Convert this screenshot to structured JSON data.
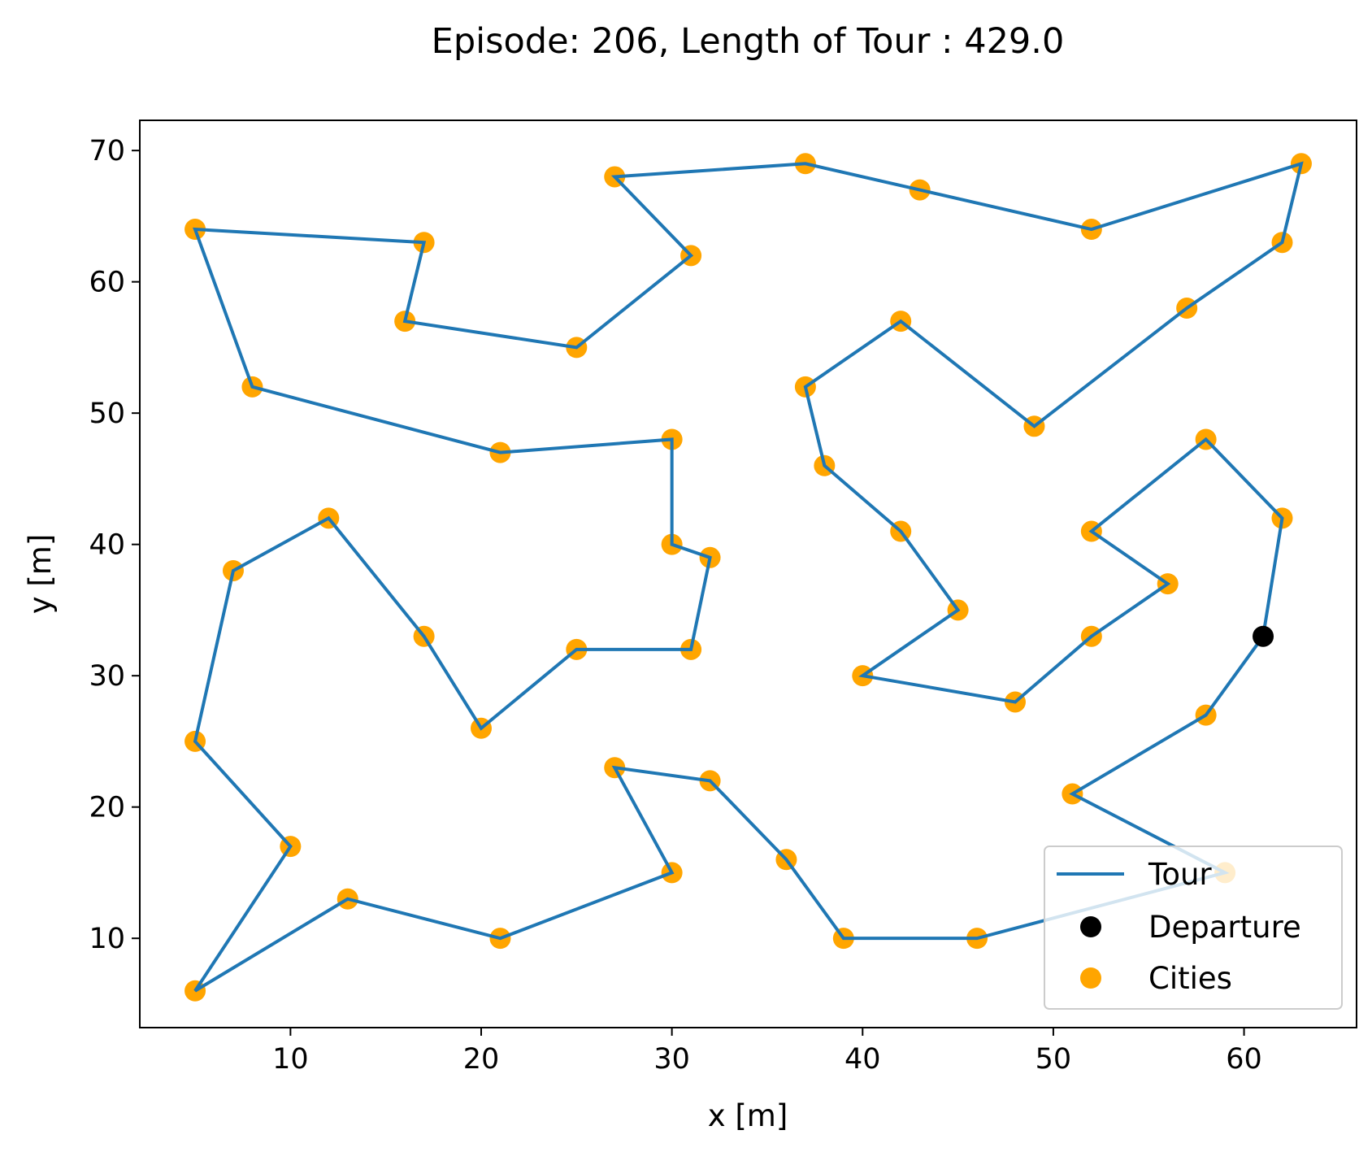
{
  "chart_data": {
    "type": "scatter",
    "title": "Episode: 206, Length of Tour : 429.0",
    "xlabel": "x [m]",
    "ylabel": "y [m]",
    "xlim": [
      2.1,
      65.9
    ],
    "ylim": [
      3.2,
      72.3
    ],
    "xticks": [
      10,
      20,
      30,
      40,
      50,
      60
    ],
    "yticks": [
      10,
      20,
      30,
      40,
      50,
      60,
      70
    ],
    "grid": false,
    "legend_position": "lower-right",
    "series": [
      {
        "name": "Tour",
        "kind": "line",
        "color": "#1f77b4",
        "points": [
          [
            61,
            33
          ],
          [
            62,
            42
          ],
          [
            58,
            48
          ],
          [
            52,
            41
          ],
          [
            56,
            37
          ],
          [
            52,
            33
          ],
          [
            48,
            28
          ],
          [
            40,
            30
          ],
          [
            45,
            35
          ],
          [
            42,
            41
          ],
          [
            38,
            46
          ],
          [
            37,
            52
          ],
          [
            42,
            57
          ],
          [
            49,
            49
          ],
          [
            57,
            58
          ],
          [
            62,
            63
          ],
          [
            63,
            69
          ],
          [
            52,
            64
          ],
          [
            43,
            67
          ],
          [
            37,
            69
          ],
          [
            27,
            68
          ],
          [
            31,
            62
          ],
          [
            25,
            55
          ],
          [
            16,
            57
          ],
          [
            17,
            63
          ],
          [
            5,
            64
          ],
          [
            8,
            52
          ],
          [
            21,
            47
          ],
          [
            30,
            48
          ],
          [
            30,
            40
          ],
          [
            32,
            39
          ],
          [
            31,
            32
          ],
          [
            25,
            32
          ],
          [
            20,
            26
          ],
          [
            17,
            33
          ],
          [
            12,
            42
          ],
          [
            7,
            38
          ],
          [
            5,
            25
          ],
          [
            10,
            17
          ],
          [
            5,
            6
          ],
          [
            13,
            13
          ],
          [
            21,
            10
          ],
          [
            30,
            15
          ],
          [
            27,
            23
          ],
          [
            32,
            22
          ],
          [
            36,
            16
          ],
          [
            39,
            10
          ],
          [
            46,
            10
          ],
          [
            59,
            15
          ],
          [
            51,
            21
          ],
          [
            58,
            27
          ],
          [
            61,
            33
          ]
        ]
      },
      {
        "name": "Departure",
        "kind": "scatter",
        "color": "#000000",
        "points": [
          [
            61,
            33
          ]
        ]
      },
      {
        "name": "Cities",
        "kind": "scatter",
        "color": "#ffa500",
        "points": [
          [
            62,
            42
          ],
          [
            58,
            48
          ],
          [
            52,
            41
          ],
          [
            56,
            37
          ],
          [
            52,
            33
          ],
          [
            48,
            28
          ],
          [
            40,
            30
          ],
          [
            45,
            35
          ],
          [
            42,
            41
          ],
          [
            38,
            46
          ],
          [
            37,
            52
          ],
          [
            42,
            57
          ],
          [
            49,
            49
          ],
          [
            57,
            58
          ],
          [
            62,
            63
          ],
          [
            63,
            69
          ],
          [
            52,
            64
          ],
          [
            43,
            67
          ],
          [
            37,
            69
          ],
          [
            27,
            68
          ],
          [
            31,
            62
          ],
          [
            25,
            55
          ],
          [
            16,
            57
          ],
          [
            17,
            63
          ],
          [
            5,
            64
          ],
          [
            8,
            52
          ],
          [
            21,
            47
          ],
          [
            30,
            48
          ],
          [
            30,
            40
          ],
          [
            32,
            39
          ],
          [
            31,
            32
          ],
          [
            25,
            32
          ],
          [
            20,
            26
          ],
          [
            17,
            33
          ],
          [
            12,
            42
          ],
          [
            7,
            38
          ],
          [
            5,
            25
          ],
          [
            10,
            17
          ],
          [
            5,
            6
          ],
          [
            13,
            13
          ],
          [
            21,
            10
          ],
          [
            30,
            15
          ],
          [
            27,
            23
          ],
          [
            32,
            22
          ],
          [
            36,
            16
          ],
          [
            39,
            10
          ],
          [
            46,
            10
          ],
          [
            59,
            15
          ],
          [
            51,
            21
          ],
          [
            58,
            27
          ]
        ]
      }
    ],
    "legend": [
      {
        "label": "Tour",
        "kind": "line",
        "color": "#1f77b4"
      },
      {
        "label": "Departure",
        "kind": "marker",
        "color": "#000000"
      },
      {
        "label": "Cities",
        "kind": "marker",
        "color": "#ffa500"
      }
    ]
  }
}
